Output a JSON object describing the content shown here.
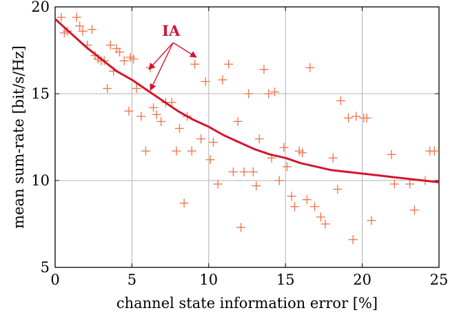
{
  "chart_data": {
    "type": "scatter",
    "xlabel": "channel state information error [%]",
    "ylabel": "mean sum-rate [bit/s/Hz]",
    "xlim": [
      0,
      25
    ],
    "ylim": [
      5,
      20
    ],
    "xticks": [
      0,
      5,
      10,
      15,
      20,
      25
    ],
    "yticks": [
      5,
      10,
      15,
      20
    ],
    "grid": true,
    "colors": {
      "scatter": "#f07850",
      "curve": "#d2142d",
      "annotation": "#d2142d"
    },
    "annotation": {
      "text": "IA",
      "targets": [
        [
          6.1,
          16.4
        ],
        [
          6.2,
          15.2
        ],
        [
          9.2,
          17.1
        ]
      ]
    },
    "series": [
      {
        "marker": "plus",
        "points": [
          [
            0.4,
            19.4
          ],
          [
            0.6,
            18.5
          ],
          [
            0.8,
            18.6
          ],
          [
            1.4,
            19.4
          ],
          [
            1.6,
            18.9
          ],
          [
            1.8,
            18.6
          ],
          [
            2.1,
            17.8
          ],
          [
            2.4,
            18.7
          ],
          [
            2.6,
            17.2
          ],
          [
            2.8,
            17.0
          ],
          [
            3.0,
            16.9
          ],
          [
            3.2,
            16.9
          ],
          [
            3.4,
            15.3
          ],
          [
            3.6,
            17.8
          ],
          [
            3.8,
            16.3
          ],
          [
            4.0,
            17.6
          ],
          [
            4.2,
            17.4
          ],
          [
            4.5,
            16.9
          ],
          [
            4.8,
            14.0
          ],
          [
            4.9,
            17.1
          ],
          [
            5.1,
            17.0
          ],
          [
            5.3,
            15.3
          ],
          [
            5.6,
            13.7
          ],
          [
            5.9,
            11.7
          ],
          [
            6.2,
            16.5
          ],
          [
            6.4,
            14.2
          ],
          [
            6.6,
            13.8
          ],
          [
            6.9,
            13.4
          ],
          [
            7.2,
            14.5
          ],
          [
            7.6,
            14.5
          ],
          [
            7.9,
            11.7
          ],
          [
            8.1,
            13.0
          ],
          [
            8.4,
            8.7
          ],
          [
            8.6,
            13.7
          ],
          [
            8.9,
            11.7
          ],
          [
            9.1,
            16.7
          ],
          [
            9.5,
            12.4
          ],
          [
            9.8,
            15.7
          ],
          [
            10.1,
            11.2
          ],
          [
            10.3,
            12.2
          ],
          [
            10.6,
            9.8
          ],
          [
            10.9,
            15.8
          ],
          [
            11.3,
            16.7
          ],
          [
            11.6,
            10.5
          ],
          [
            11.9,
            13.4
          ],
          [
            12.1,
            7.3
          ],
          [
            12.3,
            10.5
          ],
          [
            12.6,
            15.0
          ],
          [
            12.9,
            10.5
          ],
          [
            13.1,
            9.7
          ],
          [
            13.3,
            12.4
          ],
          [
            13.6,
            16.4
          ],
          [
            13.9,
            15.0
          ],
          [
            14.1,
            11.3
          ],
          [
            14.3,
            15.1
          ],
          [
            14.6,
            10.0
          ],
          [
            14.9,
            11.9
          ],
          [
            15.1,
            10.8
          ],
          [
            15.4,
            9.1
          ],
          [
            15.6,
            8.5
          ],
          [
            15.9,
            11.7
          ],
          [
            16.1,
            11.6
          ],
          [
            16.4,
            8.9
          ],
          [
            16.6,
            16.5
          ],
          [
            16.9,
            8.5
          ],
          [
            17.3,
            7.9
          ],
          [
            17.6,
            7.5
          ],
          [
            18.1,
            11.3
          ],
          [
            18.4,
            9.5
          ],
          [
            18.6,
            14.6
          ],
          [
            19.1,
            13.6
          ],
          [
            19.4,
            6.6
          ],
          [
            19.6,
            13.7
          ],
          [
            20.1,
            13.6
          ],
          [
            20.3,
            13.6
          ],
          [
            20.6,
            7.7
          ],
          [
            21.9,
            11.5
          ],
          [
            22.1,
            9.8
          ],
          [
            23.1,
            9.8
          ],
          [
            23.4,
            8.3
          ],
          [
            24.1,
            10.0
          ],
          [
            24.4,
            11.7
          ],
          [
            24.7,
            11.7
          ]
        ]
      },
      {
        "line": true,
        "points": [
          [
            0,
            19.3
          ],
          [
            1,
            18.5
          ],
          [
            2,
            17.7
          ],
          [
            3,
            17.0
          ],
          [
            4,
            16.3
          ],
          [
            5,
            15.8
          ],
          [
            6,
            15.2
          ],
          [
            7,
            14.6
          ],
          [
            8,
            14.0
          ],
          [
            9,
            13.5
          ],
          [
            10,
            13.1
          ],
          [
            11,
            12.6
          ],
          [
            12,
            12.2
          ],
          [
            13,
            11.8
          ],
          [
            14,
            11.5
          ],
          [
            15,
            11.3
          ],
          [
            16,
            11.0
          ],
          [
            17,
            10.8
          ],
          [
            18,
            10.6
          ],
          [
            19,
            10.5
          ],
          [
            20,
            10.4
          ],
          [
            21,
            10.3
          ],
          [
            22,
            10.2
          ],
          [
            23,
            10.1
          ],
          [
            24,
            10.0
          ],
          [
            25,
            9.9
          ]
        ]
      }
    ]
  }
}
